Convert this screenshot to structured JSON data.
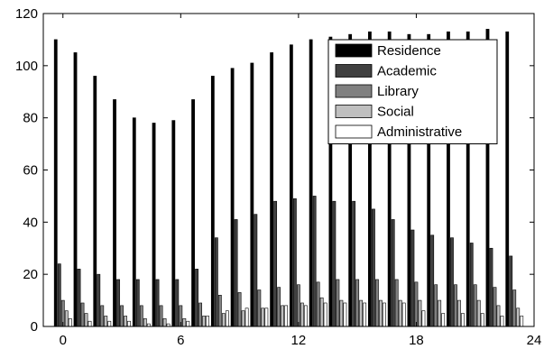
{
  "chart_data": {
    "type": "bar",
    "title": "",
    "xlabel": "",
    "ylabel": "",
    "x": [
      0,
      1,
      2,
      3,
      4,
      5,
      6,
      7,
      8,
      9,
      10,
      11,
      12,
      13,
      14,
      15,
      16,
      17,
      18,
      19,
      20,
      21,
      22,
      23
    ],
    "xlim": [
      -1,
      24
    ],
    "ylim": [
      0,
      120
    ],
    "xticks": [
      0,
      6,
      12,
      18,
      24
    ],
    "yticks": [
      0,
      20,
      40,
      60,
      80,
      100,
      120
    ],
    "grid": false,
    "legend_position": "top-right",
    "series": [
      {
        "name": "Residence",
        "color": "#000000",
        "values": [
          110,
          105,
          96,
          87,
          80,
          78,
          79,
          87,
          96,
          99,
          101,
          105,
          108,
          110,
          111,
          112,
          113,
          113,
          112,
          112,
          113,
          113,
          114,
          113
        ]
      },
      {
        "name": "Academic",
        "color": "#404040",
        "values": [
          24,
          22,
          20,
          18,
          18,
          18,
          18,
          22,
          34,
          41,
          43,
          48,
          49,
          50,
          48,
          48,
          45,
          41,
          37,
          35,
          34,
          32,
          30,
          27
        ]
      },
      {
        "name": "Library",
        "color": "#808080",
        "values": [
          10,
          9,
          8,
          8,
          8,
          8,
          8,
          9,
          12,
          13,
          14,
          15,
          16,
          17,
          18,
          18,
          18,
          18,
          17,
          16,
          16,
          16,
          15,
          14
        ]
      },
      {
        "name": "Social",
        "color": "#bfbfbf",
        "values": [
          6,
          5,
          4,
          4,
          3,
          3,
          3,
          4,
          5,
          6,
          7,
          8,
          9,
          11,
          10,
          10,
          10,
          10,
          10,
          10,
          10,
          10,
          8,
          7
        ]
      },
      {
        "name": "Administrative",
        "color": "#ffffff",
        "values": [
          3,
          2,
          2,
          2,
          1,
          1,
          2,
          4,
          6,
          7,
          7,
          8,
          8,
          9,
          9,
          9,
          9,
          9,
          6,
          5,
          5,
          5,
          4,
          4
        ]
      }
    ]
  }
}
